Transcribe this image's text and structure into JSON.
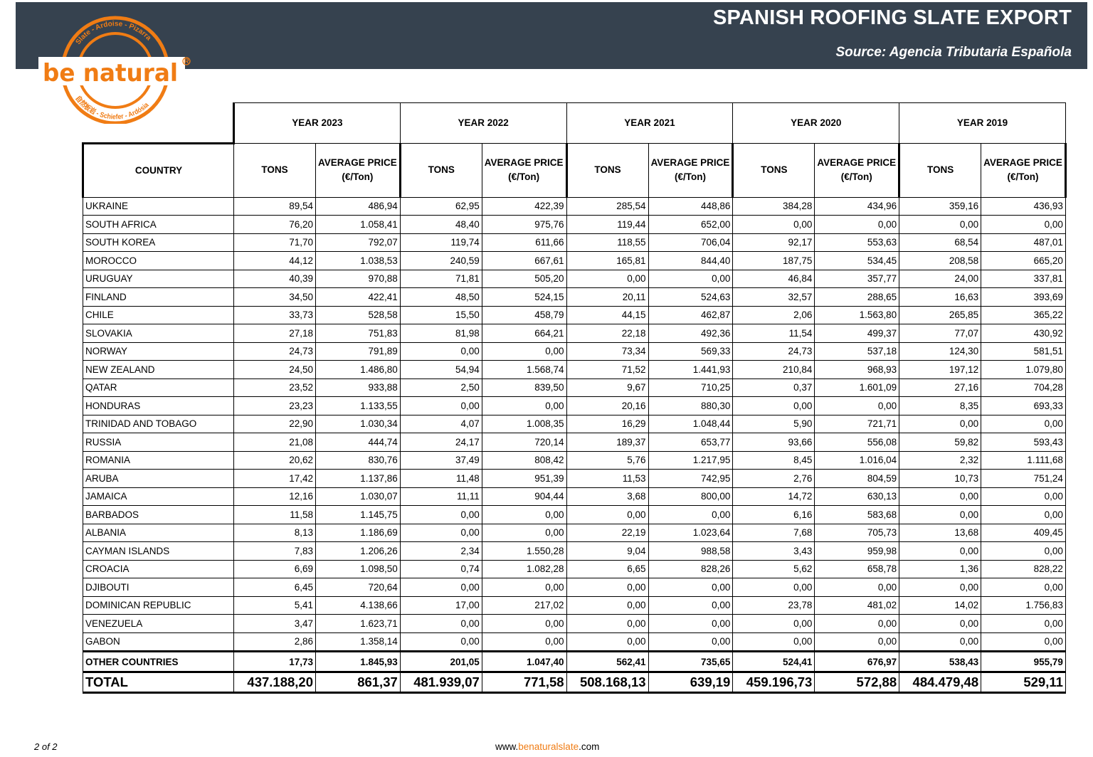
{
  "header": {
    "title": "SPANISH ROOFING SLATE EXPORT",
    "source": "Source: Agencia Tributaria Española",
    "background_color": "#36424f"
  },
  "logo": {
    "text": "be natural",
    "ring_text_top": "Slate - Ardoise - Pizarra",
    "ring_text_bottom": "自然板岩 - Schiefer - Ardósia",
    "color": "#f07c14"
  },
  "table": {
    "years": [
      "YEAR 2023",
      "YEAR 2022",
      "YEAR 2021",
      "YEAR 2020",
      "YEAR 2019"
    ],
    "country_header": "COUNTRY",
    "tons_header": "TONS",
    "price_header_line1": "AVERAGE PRICE",
    "price_header_line2": "(€/Ton)",
    "rows": [
      {
        "country": "UKRAINE",
        "values": [
          "89,54",
          "486,94",
          "62,95",
          "422,39",
          "285,54",
          "448,86",
          "384,28",
          "434,96",
          "359,16",
          "436,93"
        ]
      },
      {
        "country": "SOUTH AFRICA",
        "values": [
          "76,20",
          "1.058,41",
          "48,40",
          "975,76",
          "119,44",
          "652,00",
          "0,00",
          "0,00",
          "0,00",
          "0,00"
        ]
      },
      {
        "country": "SOUTH KOREA",
        "values": [
          "71,70",
          "792,07",
          "119,74",
          "611,66",
          "118,55",
          "706,04",
          "92,17",
          "553,63",
          "68,54",
          "487,01"
        ]
      },
      {
        "country": "MOROCCO",
        "values": [
          "44,12",
          "1.038,53",
          "240,59",
          "667,61",
          "165,81",
          "844,40",
          "187,75",
          "534,45",
          "208,58",
          "665,20"
        ]
      },
      {
        "country": "URUGUAY",
        "values": [
          "40,39",
          "970,88",
          "71,81",
          "505,20",
          "0,00",
          "0,00",
          "46,84",
          "357,77",
          "24,00",
          "337,81"
        ]
      },
      {
        "country": "FINLAND",
        "values": [
          "34,50",
          "422,41",
          "48,50",
          "524,15",
          "20,11",
          "524,63",
          "32,57",
          "288,65",
          "16,63",
          "393,69"
        ]
      },
      {
        "country": "CHILE",
        "values": [
          "33,73",
          "528,58",
          "15,50",
          "458,79",
          "44,15",
          "462,87",
          "2,06",
          "1.563,80",
          "265,85",
          "365,22"
        ]
      },
      {
        "country": "SLOVAKIA",
        "values": [
          "27,18",
          "751,83",
          "81,98",
          "664,21",
          "22,18",
          "492,36",
          "11,54",
          "499,37",
          "77,07",
          "430,92"
        ]
      },
      {
        "country": "NORWAY",
        "values": [
          "24,73",
          "791,89",
          "0,00",
          "0,00",
          "73,34",
          "569,33",
          "24,73",
          "537,18",
          "124,30",
          "581,51"
        ]
      },
      {
        "country": "NEW ZEALAND",
        "values": [
          "24,50",
          "1.486,80",
          "54,94",
          "1.568,74",
          "71,52",
          "1.441,93",
          "210,84",
          "968,93",
          "197,12",
          "1.079,80"
        ]
      },
      {
        "country": "QATAR",
        "values": [
          "23,52",
          "933,88",
          "2,50",
          "839,50",
          "9,67",
          "710,25",
          "0,37",
          "1.601,09",
          "27,16",
          "704,28"
        ]
      },
      {
        "country": "HONDURAS",
        "values": [
          "23,23",
          "1.133,55",
          "0,00",
          "0,00",
          "20,16",
          "880,30",
          "0,00",
          "0,00",
          "8,35",
          "693,33"
        ]
      },
      {
        "country": "TRINIDAD AND TOBAGO",
        "values": [
          "22,90",
          "1.030,34",
          "4,07",
          "1.008,35",
          "16,29",
          "1.048,44",
          "5,90",
          "721,71",
          "0,00",
          "0,00"
        ]
      },
      {
        "country": "RUSSIA",
        "values": [
          "21,08",
          "444,74",
          "24,17",
          "720,14",
          "189,37",
          "653,77",
          "93,66",
          "556,08",
          "59,82",
          "593,43"
        ]
      },
      {
        "country": "ROMANIA",
        "values": [
          "20,62",
          "830,76",
          "37,49",
          "808,42",
          "5,76",
          "1.217,95",
          "8,45",
          "1.016,04",
          "2,32",
          "1.111,68"
        ]
      },
      {
        "country": "ARUBA",
        "values": [
          "17,42",
          "1.137,86",
          "11,48",
          "951,39",
          "11,53",
          "742,95",
          "2,76",
          "804,59",
          "10,73",
          "751,24"
        ]
      },
      {
        "country": "JAMAICA",
        "values": [
          "12,16",
          "1.030,07",
          "11,11",
          "904,44",
          "3,68",
          "800,00",
          "14,72",
          "630,13",
          "0,00",
          "0,00"
        ]
      },
      {
        "country": "BARBADOS",
        "values": [
          "11,58",
          "1.145,75",
          "0,00",
          "0,00",
          "0,00",
          "0,00",
          "6,16",
          "583,68",
          "0,00",
          "0,00"
        ]
      },
      {
        "country": "ALBANIA",
        "values": [
          "8,13",
          "1.186,69",
          "0,00",
          "0,00",
          "22,19",
          "1.023,64",
          "7,68",
          "705,73",
          "13,68",
          "409,45"
        ]
      },
      {
        "country": "CAYMAN ISLANDS",
        "values": [
          "7,83",
          "1.206,26",
          "2,34",
          "1.550,28",
          "9,04",
          "988,58",
          "3,43",
          "959,98",
          "0,00",
          "0,00"
        ]
      },
      {
        "country": "CROACIA",
        "values": [
          "6,69",
          "1.098,50",
          "0,74",
          "1.082,28",
          "6,65",
          "828,26",
          "5,62",
          "658,78",
          "1,36",
          "828,22"
        ]
      },
      {
        "country": "DJIBOUTI",
        "values": [
          "6,45",
          "720,64",
          "0,00",
          "0,00",
          "0,00",
          "0,00",
          "0,00",
          "0,00",
          "0,00",
          "0,00"
        ]
      },
      {
        "country": "DOMINICAN REPUBLIC",
        "values": [
          "5,41",
          "4.138,66",
          "17,00",
          "217,02",
          "0,00",
          "0,00",
          "23,78",
          "481,02",
          "14,02",
          "1.756,83"
        ]
      },
      {
        "country": "VENEZUELA",
        "values": [
          "3,47",
          "1.623,71",
          "0,00",
          "0,00",
          "0,00",
          "0,00",
          "0,00",
          "0,00",
          "0,00",
          "0,00"
        ]
      },
      {
        "country": "GABON",
        "values": [
          "2,86",
          "1.358,14",
          "0,00",
          "0,00",
          "0,00",
          "0,00",
          "0,00",
          "0,00",
          "0,00",
          "0,00"
        ]
      }
    ],
    "other": {
      "country": "OTHER COUNTRIES",
      "values": [
        "17,73",
        "1.845,93",
        "201,05",
        "1.047,40",
        "562,41",
        "735,65",
        "524,41",
        "676,97",
        "538,43",
        "955,79"
      ]
    },
    "total": {
      "country": "TOTAL",
      "values": [
        "437.188,20",
        "861,37",
        "481.939,07",
        "771,58",
        "508.168,13",
        "639,19",
        "459.196,73",
        "572,88",
        "484.479,48",
        "529,11"
      ]
    }
  },
  "footer": {
    "page": "2 of 2",
    "url_prefix": "www.",
    "url_brand": "benaturalslate",
    "url_suffix": ".com"
  }
}
